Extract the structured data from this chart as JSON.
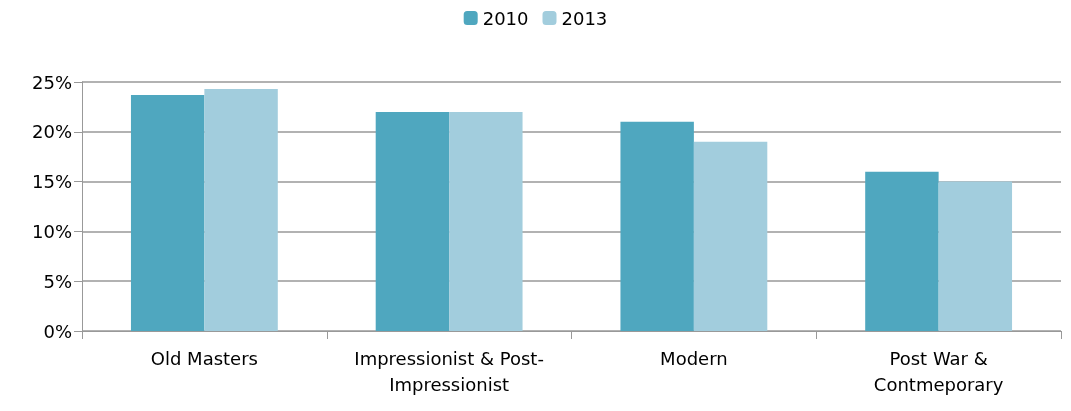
{
  "chart_data": {
    "type": "bar",
    "categories": [
      "Old Masters",
      "Impressionist & Post-Impressionist",
      "Modern",
      "Post War & Contmeporary"
    ],
    "series": [
      {
        "name": "2010",
        "color": "#4fa7bf",
        "values": [
          23.7,
          22,
          21,
          16
        ]
      },
      {
        "name": "2013",
        "color": "#a2cddd",
        "values": [
          24.3,
          22,
          19,
          15
        ]
      }
    ],
    "ylim": [
      0,
      25
    ],
    "yticks": [
      {
        "value": 0,
        "label": "0%"
      },
      {
        "value": 5,
        "label": "5%"
      },
      {
        "value": 10,
        "label": "10%"
      },
      {
        "value": 15,
        "label": "15%"
      },
      {
        "value": 20,
        "label": "20%"
      },
      {
        "value": 25,
        "label": "25%"
      }
    ],
    "grid": "y",
    "legend": "top"
  }
}
